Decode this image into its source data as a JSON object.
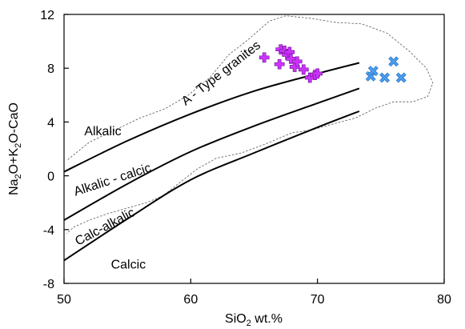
{
  "chart_data": {
    "type": "scatter",
    "xlabel_parts": [
      "SiO",
      "2",
      " wt.%"
    ],
    "ylabel_parts": [
      "Na",
      "2",
      "O+K",
      "2",
      "O-CaO"
    ],
    "xlim": [
      50,
      80
    ],
    "ylim": [
      -8,
      12
    ],
    "x_ticks": [
      "50",
      "60",
      "70",
      "80"
    ],
    "y_ticks": [
      "-8",
      "-4",
      "0",
      "4",
      "8",
      "12"
    ],
    "grid": false,
    "boundary_lines": [
      {
        "name": "alkalic/alkali-calcic",
        "points": [
          [
            50,
            0.3
          ],
          [
            55,
            2.6
          ],
          [
            60,
            4.6
          ],
          [
            65,
            6.3
          ],
          [
            70,
            7.6
          ],
          [
            73.3,
            8.4
          ]
        ]
      },
      {
        "name": "alkali-calcic/calc-alkalic",
        "points": [
          [
            50,
            -3.3
          ],
          [
            55,
            -0.6
          ],
          [
            60,
            1.8
          ],
          [
            65,
            3.7
          ],
          [
            70,
            5.4
          ],
          [
            73.3,
            6.5
          ]
        ]
      },
      {
        "name": "calc-alkalic/calcic",
        "points": [
          [
            50,
            -6.3
          ],
          [
            55,
            -3.2
          ],
          [
            60,
            -0.3
          ],
          [
            65,
            1.7
          ],
          [
            70,
            3.6
          ],
          [
            73.3,
            4.8
          ]
        ]
      }
    ],
    "a_type_field": {
      "outline": [
        [
          50.3,
          1.2
        ],
        [
          52,
          2.5
        ],
        [
          54,
          3.4
        ],
        [
          56,
          4.3
        ],
        [
          58,
          5.0
        ],
        [
          59.8,
          6.0
        ],
        [
          61.5,
          7.3
        ],
        [
          63,
          9.0
        ],
        [
          64.5,
          10.1
        ],
        [
          66.2,
          11.5
        ],
        [
          67.5,
          11.9
        ],
        [
          69.5,
          11.7
        ],
        [
          71.5,
          11.4
        ],
        [
          73.5,
          11.3
        ],
        [
          75.5,
          10.6
        ],
        [
          77.2,
          9.3
        ],
        [
          78.6,
          8.0
        ],
        [
          79.1,
          6.9
        ],
        [
          78.7,
          5.9
        ],
        [
          77.5,
          5.5
        ],
        [
          76.0,
          5.5
        ],
        [
          74.5,
          5.0
        ],
        [
          73.0,
          4.3
        ],
        [
          71.0,
          3.8
        ],
        [
          69.5,
          3.4
        ],
        [
          68.0,
          3.2
        ],
        [
          66.0,
          2.4
        ],
        [
          64.0,
          1.7
        ],
        [
          62.0,
          1.3
        ],
        [
          60.5,
          0.5
        ],
        [
          59.0,
          -0.6
        ],
        [
          57.8,
          -1.5
        ],
        [
          56.5,
          -2.0
        ],
        [
          55.0,
          -2.4
        ],
        [
          53.5,
          -2.8
        ],
        [
          52.0,
          -3.3
        ],
        [
          50.8,
          -3.8
        ],
        [
          50.2,
          -4.3
        ]
      ]
    },
    "series": [
      {
        "marker": "plus",
        "color": "#cc33ff",
        "points": [
          [
            65.8,
            8.8
          ],
          [
            67.0,
            8.3
          ],
          [
            67.1,
            9.4
          ],
          [
            67.4,
            9.3
          ],
          [
            67.6,
            9.0
          ],
          [
            67.8,
            9.2
          ],
          [
            67.9,
            8.7
          ],
          [
            68.2,
            8.1
          ],
          [
            68.4,
            8.5
          ],
          [
            68.9,
            7.9
          ],
          [
            69.4,
            7.3
          ],
          [
            69.8,
            7.5
          ],
          [
            70.0,
            7.6
          ]
        ]
      },
      {
        "marker": "x",
        "color": "#4a9ef0",
        "points": [
          [
            74.2,
            7.4
          ],
          [
            74.4,
            7.8
          ],
          [
            75.3,
            7.3
          ],
          [
            76.0,
            8.5
          ],
          [
            76.6,
            7.3
          ]
        ]
      }
    ],
    "annotations": {
      "alkalic": "Alkalic",
      "alkali_calcic": "Alkalic - calcic",
      "calc_alkalic": "Calc-alkalic",
      "calcic": "Calcic",
      "a_type": "A - Type granites"
    }
  }
}
